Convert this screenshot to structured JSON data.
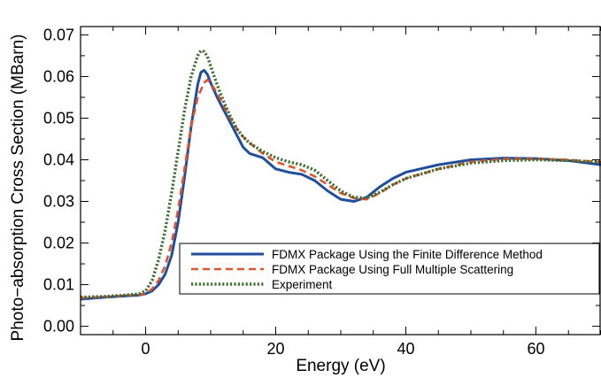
{
  "chart_data": {
    "type": "line",
    "title": "",
    "xlabel": "Energy (eV)",
    "ylabel": "Photo−absorption Cross Section (MBarn)",
    "xlim": [
      -10,
      70
    ],
    "ylim": [
      -0.002,
      0.072
    ],
    "x_ticks": [
      0,
      20,
      40,
      60
    ],
    "y_ticks": [
      0.0,
      0.01,
      0.02,
      0.03,
      0.04,
      0.05,
      0.06,
      0.07
    ],
    "y_tick_labels": [
      "0.00",
      "0.01",
      "0.02",
      "0.03",
      "0.04",
      "0.05",
      "0.06",
      "0.07"
    ],
    "x_tick_labels": [
      "0",
      "20",
      "40",
      "60"
    ],
    "grid": false,
    "legend_position": "lower-right",
    "series": [
      {
        "name": "FDMX Package Using the Finite Difference Method",
        "color": "#1f4e9c",
        "style": "solid",
        "x": [
          -10,
          -6,
          -3,
          -1,
          0,
          1,
          2,
          3,
          4,
          5,
          6,
          7,
          8,
          8.5,
          9,
          9.5,
          10,
          11,
          12,
          13,
          14,
          15,
          16,
          18,
          20,
          22,
          24,
          26,
          28,
          30,
          32,
          34,
          36,
          38,
          40,
          45,
          50,
          55,
          60,
          65,
          70
        ],
        "y": [
          0.0065,
          0.007,
          0.0073,
          0.0075,
          0.0078,
          0.0085,
          0.01,
          0.0125,
          0.017,
          0.025,
          0.036,
          0.048,
          0.058,
          0.061,
          0.0615,
          0.0605,
          0.0585,
          0.055,
          0.052,
          0.049,
          0.046,
          0.043,
          0.0415,
          0.0405,
          0.0378,
          0.037,
          0.0365,
          0.035,
          0.0325,
          0.0305,
          0.03,
          0.031,
          0.0335,
          0.0355,
          0.037,
          0.0388,
          0.04,
          0.0404,
          0.0403,
          0.0398,
          0.0388
        ]
      },
      {
        "name": "FDMX Package Using Full Multiple Scattering",
        "color": "#e2522b",
        "style": "dashed",
        "x": [
          -10,
          -6,
          -3,
          -1,
          0,
          1,
          2,
          3,
          4,
          5,
          6,
          7,
          8,
          9,
          9.5,
          10,
          11,
          12,
          13,
          14,
          15,
          16,
          18,
          20,
          22,
          24,
          26,
          28,
          30,
          32,
          34,
          36,
          38,
          40,
          45,
          50,
          55,
          60,
          65,
          70
        ],
        "y": [
          0.0068,
          0.0071,
          0.0074,
          0.0076,
          0.0078,
          0.009,
          0.011,
          0.0145,
          0.02,
          0.028,
          0.038,
          0.048,
          0.055,
          0.0585,
          0.0592,
          0.0585,
          0.056,
          0.053,
          0.05,
          0.0475,
          0.0455,
          0.044,
          0.0415,
          0.0395,
          0.0385,
          0.0375,
          0.036,
          0.034,
          0.032,
          0.0308,
          0.0305,
          0.032,
          0.034,
          0.0355,
          0.0378,
          0.0395,
          0.0402,
          0.0402,
          0.04,
          0.0394
        ]
      },
      {
        "name": "Experiment",
        "color": "#3c6e2f",
        "style": "dotted",
        "x": [
          -10,
          -6,
          -3,
          -1,
          0,
          1,
          2,
          3,
          4,
          5,
          6,
          7,
          8,
          8.5,
          9,
          9.5,
          10,
          11,
          12,
          13,
          14,
          15,
          16,
          18,
          20,
          22,
          24,
          26,
          28,
          30,
          32,
          34,
          36,
          38,
          40,
          45,
          50,
          55,
          60,
          65,
          70
        ],
        "y": [
          0.007,
          0.0072,
          0.0075,
          0.0078,
          0.0085,
          0.011,
          0.016,
          0.023,
          0.032,
          0.042,
          0.052,
          0.06,
          0.065,
          0.0662,
          0.066,
          0.0648,
          0.0625,
          0.058,
          0.054,
          0.0505,
          0.0475,
          0.0455,
          0.044,
          0.042,
          0.0405,
          0.0395,
          0.0388,
          0.0375,
          0.035,
          0.0325,
          0.031,
          0.0308,
          0.0322,
          0.034,
          0.0355,
          0.0378,
          0.0392,
          0.0398,
          0.04,
          0.0398,
          0.0395
        ]
      }
    ]
  }
}
